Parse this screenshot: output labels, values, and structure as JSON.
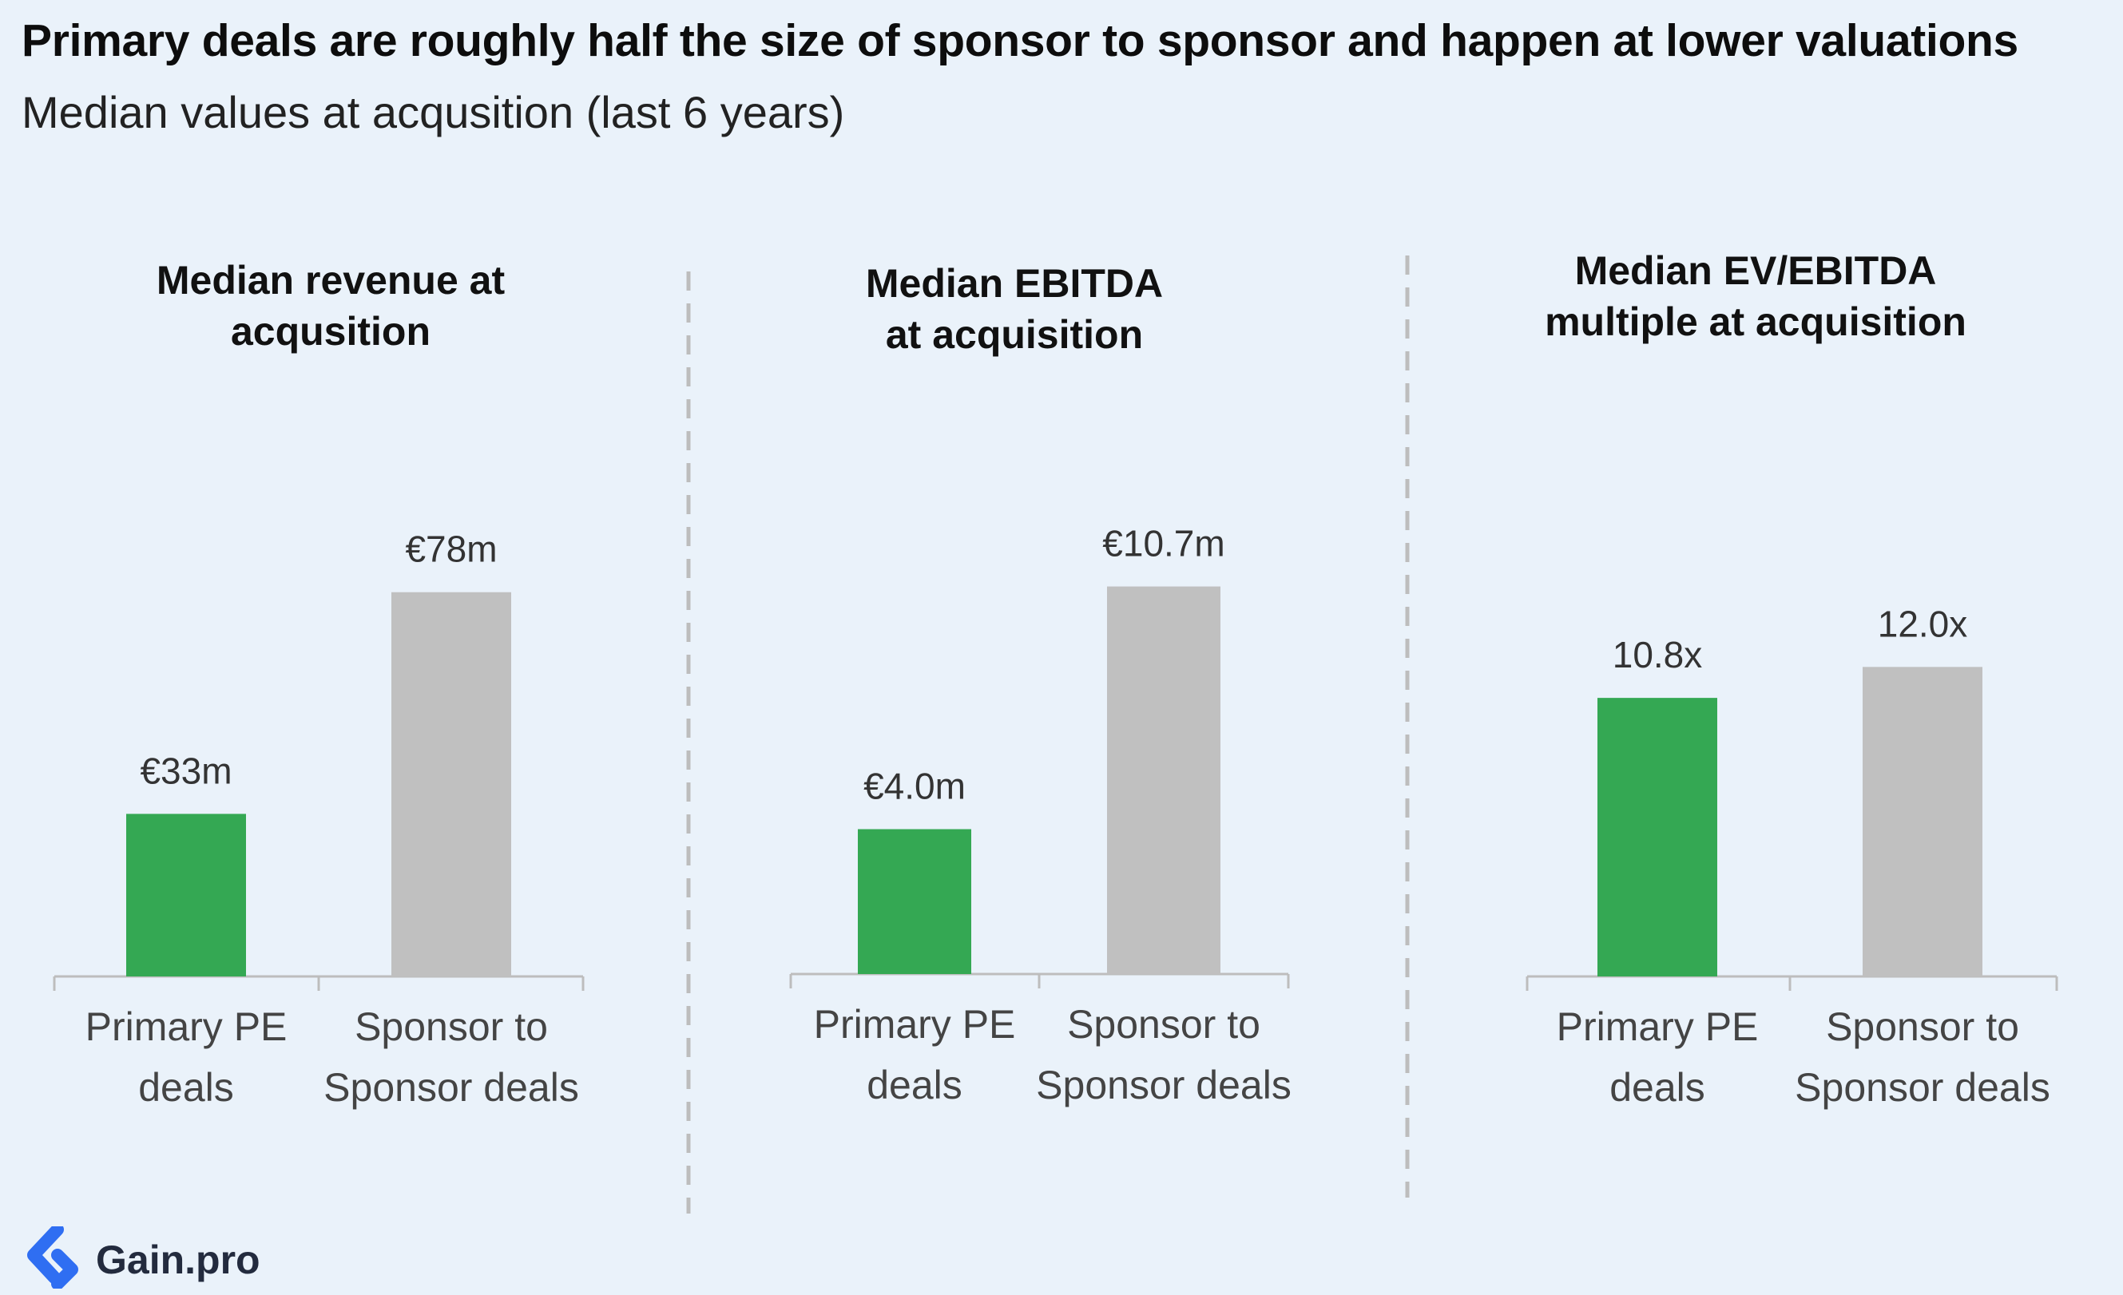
{
  "title": "Primary deals are roughly half the size of sponsor to sponsor and happen at lower valuations",
  "subtitle": "Median values at acqusition (last 6 years)",
  "logo": {
    "icon": "gain-pro-logo-icon",
    "text": "Gain.pro"
  },
  "colors": {
    "primary": "#34a853",
    "sponsor": "#c0c0c0",
    "axis": "#bdbdbd",
    "divider": "#bdbdbd",
    "background": "#eaf2fa"
  },
  "chart_data": [
    {
      "type": "bar",
      "title": "Median revenue at acqusition",
      "title_lines": [
        "Median revenue at",
        "acqusition"
      ],
      "categories": [
        "Primary PE deals",
        "Sponsor to Sponsor deals"
      ],
      "category_lines": [
        [
          "Primary PE",
          "deals"
        ],
        [
          "Sponsor to",
          "Sponsor deals"
        ]
      ],
      "values": [
        33,
        78
      ],
      "labels": [
        "€33m",
        "€78m"
      ],
      "unit": "€m",
      "ylim": [
        0,
        100
      ]
    },
    {
      "type": "bar",
      "title": "Median EBITDA at acquisition",
      "title_lines": [
        "Median EBITDA",
        "at acquisition"
      ],
      "categories": [
        "Primary PE deals",
        "Sponsor to Sponsor deals"
      ],
      "category_lines": [
        [
          "Primary PE",
          "deals"
        ],
        [
          "Sponsor to",
          "Sponsor deals"
        ]
      ],
      "values": [
        4.0,
        10.7
      ],
      "labels": [
        "€4.0m",
        "€10.7m"
      ],
      "unit": "€m",
      "ylim": [
        0,
        13.6
      ]
    },
    {
      "type": "bar",
      "title": "Median EV/EBITDA multiple at acquisition",
      "title_lines": [
        "Median EV/EBITDA",
        "multiple at acquisition"
      ],
      "categories": [
        "Primary PE deals",
        "Sponsor to Sponsor deals"
      ],
      "category_lines": [
        [
          "Primary PE",
          "deals"
        ],
        [
          "Sponsor to",
          "Sponsor deals"
        ]
      ],
      "values": [
        10.8,
        12.0
      ],
      "labels": [
        "10.8x",
        "12.0x"
      ],
      "unit": "x",
      "ylim": [
        0,
        19.1
      ]
    }
  ]
}
